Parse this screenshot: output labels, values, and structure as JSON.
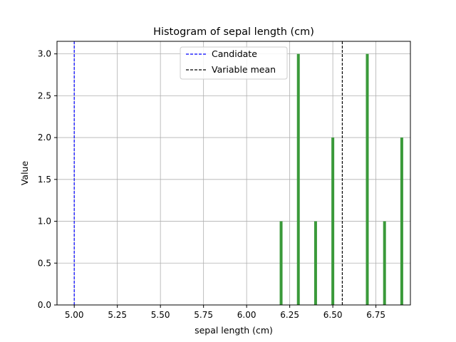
{
  "chart_data": {
    "type": "bar",
    "title": "Histogram of sepal length (cm)",
    "xlabel": "sepal length (cm)",
    "ylabel": "Value",
    "xlim": [
      4.9,
      6.95
    ],
    "ylim": [
      0,
      3.15
    ],
    "xticks": [
      5.0,
      5.25,
      5.5,
      5.75,
      6.0,
      6.25,
      6.5,
      6.75
    ],
    "xtick_labels": [
      "5.00",
      "5.25",
      "5.50",
      "5.75",
      "6.00",
      "6.25",
      "6.50",
      "6.75"
    ],
    "yticks": [
      0,
      0.5,
      1.0,
      1.5,
      2.0,
      2.5,
      3.0
    ],
    "ytick_labels": [
      "0.0",
      "0.5",
      "1.0",
      "1.5",
      "2.0",
      "2.5",
      "3.0"
    ],
    "grid": true,
    "bar_color": "#3a9a3a",
    "bars": [
      {
        "x": 6.2,
        "value": 1
      },
      {
        "x": 6.3,
        "value": 3
      },
      {
        "x": 6.4,
        "value": 1
      },
      {
        "x": 6.5,
        "value": 2
      },
      {
        "x": 6.7,
        "value": 3
      },
      {
        "x": 6.8,
        "value": 1
      },
      {
        "x": 6.9,
        "value": 2
      }
    ],
    "vlines": [
      {
        "name": "Candidate",
        "x": 5.0,
        "color": "#0000ff"
      },
      {
        "name": "Variable mean",
        "x": 6.555,
        "color": "#000000"
      }
    ],
    "legend": {
      "placement": "upper-center",
      "entries": [
        "Candidate",
        "Variable mean"
      ]
    }
  }
}
